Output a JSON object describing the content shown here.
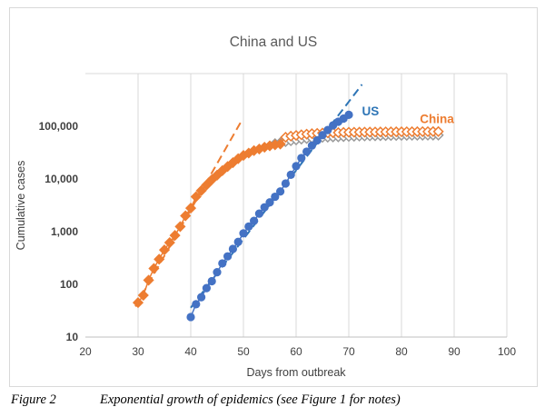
{
  "chart_data": {
    "type": "scatter",
    "title": "China  and US",
    "xlabel": "Days from outbreak",
    "ylabel": "Cumulative cases",
    "xlim": [
      20,
      100
    ],
    "ylim": [
      10,
      1000000
    ],
    "y_scale": "log",
    "grid": "vertical",
    "x_ticks": [
      "20",
      "30",
      "40",
      "50",
      "60",
      "70",
      "80",
      "90",
      "100"
    ],
    "y_ticks": [
      {
        "value": 10,
        "label": "10"
      },
      {
        "value": 100,
        "label": "100"
      },
      {
        "value": 1000,
        "label": "1,000"
      },
      {
        "value": 10000,
        "label": "10,000"
      },
      {
        "value": 100000,
        "label": "100,000"
      }
    ],
    "colors": {
      "china": "#ED7D31",
      "us": "#4472C4",
      "china_gray": "#9a9a9a",
      "trend_us": "#2E75B6"
    },
    "series": [
      {
        "name": "US",
        "marker": "circle",
        "color": "#4472C4",
        "x": [
          40,
          41,
          42,
          43,
          44,
          45,
          46,
          47,
          48,
          49,
          50,
          51,
          52,
          53,
          54,
          55,
          56,
          57,
          58,
          59,
          60,
          61,
          62,
          63,
          64,
          65,
          66,
          67,
          68,
          69,
          70
        ],
        "y": [
          24,
          42,
          57,
          85,
          115,
          170,
          250,
          340,
          470,
          640,
          930,
          1250,
          1600,
          2200,
          2900,
          3600,
          4600,
          5800,
          8200,
          12000,
          17500,
          25000,
          33000,
          43000,
          54000,
          68000,
          85000,
          104000,
          122000,
          140000,
          165000
        ]
      },
      {
        "name": "China",
        "marker": "diamond-open",
        "color": "#ED7D31",
        "x": [
          30,
          31,
          32,
          33,
          34,
          35,
          36,
          37,
          38,
          39,
          40,
          41,
          42,
          43,
          44,
          45,
          46,
          47,
          48,
          49,
          50,
          51,
          52,
          53,
          54,
          55,
          56,
          57,
          58,
          59,
          60,
          61,
          62,
          63,
          64,
          65,
          66,
          67,
          68,
          69,
          70,
          71,
          72,
          73,
          74,
          75,
          76,
          77,
          78,
          79,
          80,
          81,
          82,
          83,
          84,
          85,
          86,
          87
        ],
        "y": [
          45,
          62,
          120,
          200,
          300,
          450,
          620,
          850,
          1250,
          2000,
          2800,
          4600,
          6000,
          7700,
          9700,
          11800,
          14400,
          17200,
          20400,
          24300,
          28000,
          31000,
          34500,
          37000,
          40000,
          42500,
          44500,
          46000,
          62000,
          65000,
          67000,
          69000,
          71000,
          72500,
          73500,
          74500,
          75000,
          75500,
          76000,
          76500,
          77000,
          77200,
          77400,
          77600,
          77800,
          78000,
          78200,
          78400,
          78500,
          78600,
          78700,
          78800,
          78900,
          79000,
          79100,
          79200,
          79300,
          79400
        ]
      },
      {
        "name": "",
        "marker": "diamond-open",
        "color": "#9a9a9a",
        "x": [
          56,
          57,
          58,
          59,
          60,
          61,
          62,
          63,
          64,
          65,
          66,
          67,
          68,
          69,
          70,
          71,
          72,
          73,
          74,
          75,
          76,
          77,
          78,
          79,
          80,
          81,
          82,
          83,
          84,
          85,
          86,
          87
        ],
        "y": [
          47000,
          49000,
          51000,
          53000,
          55000,
          57000,
          58500,
          59500,
          60500,
          61500,
          62000,
          62500,
          63000,
          63500,
          64000,
          64500,
          65000,
          65300,
          65600,
          65900,
          66200,
          66400,
          66600,
          66800,
          67000,
          67200,
          67300,
          67400,
          67500,
          67600,
          67700,
          67800
        ]
      }
    ],
    "trendlines": [
      {
        "series": "China",
        "color": "#ED7D31",
        "style": "dashed",
        "x": [
          29.5,
          49.5
        ],
        "y": [
          38,
          120000
        ]
      },
      {
        "series": "US",
        "color": "#2E75B6",
        "style": "dashed",
        "x": [
          40,
          72.5
        ],
        "y": [
          36,
          620000
        ]
      }
    ],
    "annotations": [
      {
        "text": "US",
        "x": 72.5,
        "y": 160000,
        "color": "#2E75B6"
      },
      {
        "text": "China",
        "x": 83.5,
        "y": 115000,
        "color": "#ED7D31"
      }
    ]
  },
  "caption": {
    "label": "Figure 2",
    "text": "Exponential growth of epidemics  (see Figure 1 for notes)"
  }
}
